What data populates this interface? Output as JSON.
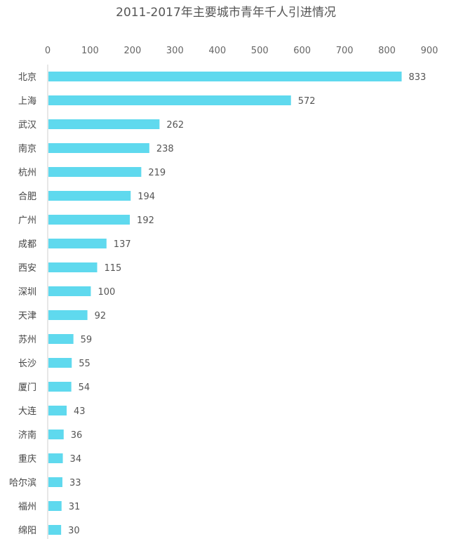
{
  "chart_data": {
    "type": "bar",
    "orientation": "horizontal",
    "title": "2011-2017年主要城市青年千人引进情况",
    "xlabel": "",
    "ylabel": "",
    "xlim": [
      0,
      900
    ],
    "xticks": [
      0,
      100,
      200,
      300,
      400,
      500,
      600,
      700,
      800,
      900
    ],
    "grid": false,
    "legend": "none",
    "bar_color": "#5fd9ee",
    "categories": [
      "北京",
      "上海",
      "武汉",
      "南京",
      "杭州",
      "合肥",
      "广州",
      "成都",
      "西安",
      "深圳",
      "天津",
      "苏州",
      "长沙",
      "厦门",
      "大连",
      "济南",
      "重庆",
      "哈尔滨",
      "福州",
      "绵阳"
    ],
    "values": [
      833,
      572,
      262,
      238,
      219,
      194,
      192,
      137,
      115,
      100,
      92,
      59,
      55,
      54,
      43,
      36,
      34,
      33,
      31,
      30
    ]
  }
}
